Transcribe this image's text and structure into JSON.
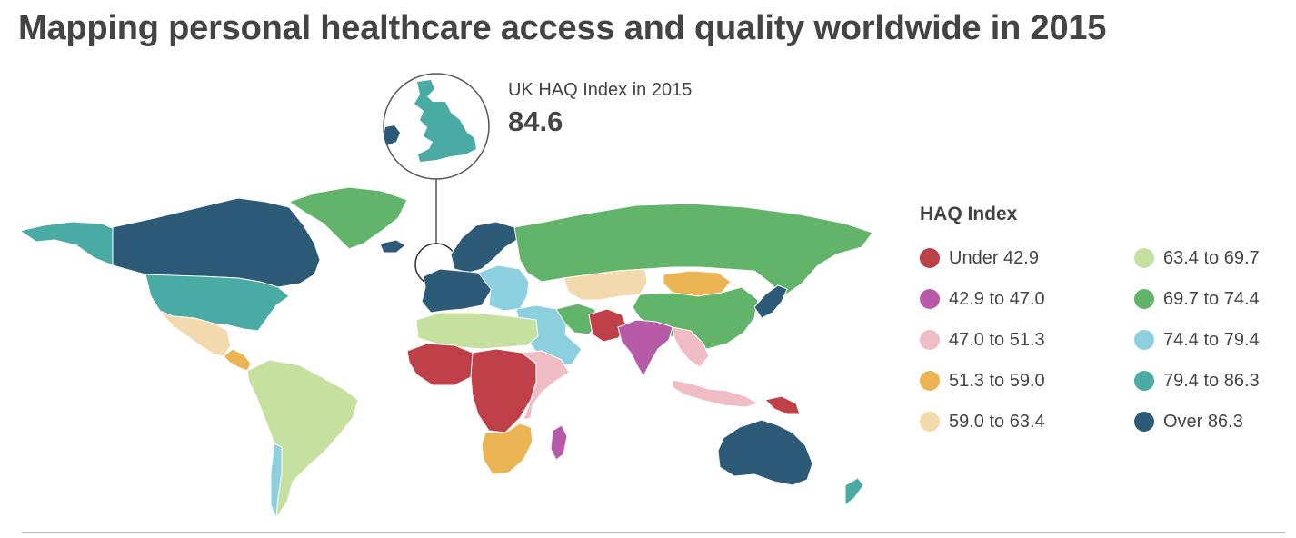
{
  "title": "Mapping personal healthcare access and quality worldwide in 2015",
  "callout": {
    "region": "UK",
    "label": "UK HAQ Index in 2015",
    "value": "84.6",
    "region_color": "#4aaba5"
  },
  "legend": {
    "title": "HAQ Index",
    "items": [
      {
        "label": "Under 42.9",
        "color": "#c0404a"
      },
      {
        "label": "42.9 to 47.0",
        "color": "#b75ba8"
      },
      {
        "label": "47.0 to 51.3",
        "color": "#f0bcc6"
      },
      {
        "label": "51.3 to 59.0",
        "color": "#ebb455"
      },
      {
        "label": "59.0 to 63.4",
        "color": "#f3d9ae"
      },
      {
        "label": "63.4 to 69.7",
        "color": "#c6e0a0"
      },
      {
        "label": "69.7 to 74.4",
        "color": "#62b46b"
      },
      {
        "label": "74.4 to 79.4",
        "color": "#8ccfdf"
      },
      {
        "label": "79.4 to 86.3",
        "color": "#4aaba5"
      },
      {
        "label": "Over 86.3",
        "color": "#2d5a77"
      }
    ]
  },
  "map": {
    "projection": "world choropleth",
    "regions": [
      {
        "name": "Alaska",
        "color": "#4aaba5"
      },
      {
        "name": "Canada",
        "color": "#2d5a77"
      },
      {
        "name": "USA",
        "color": "#4aaba5"
      },
      {
        "name": "Greenland",
        "color": "#62b46b"
      },
      {
        "name": "Mexico",
        "color": "#f3d9ae"
      },
      {
        "name": "Central America",
        "color": "#ebb455"
      },
      {
        "name": "South America",
        "color": "#c6e0a0"
      },
      {
        "name": "Chile",
        "color": "#8ccfdf"
      },
      {
        "name": "Iceland",
        "color": "#2d5a77"
      },
      {
        "name": "Scandinavia",
        "color": "#2d5a77"
      },
      {
        "name": "Western Europe",
        "color": "#2d5a77"
      },
      {
        "name": "Eastern Europe",
        "color": "#8ccfdf"
      },
      {
        "name": "Russia",
        "color": "#62b46b"
      },
      {
        "name": "Kazakhstan",
        "color": "#f3d9ae"
      },
      {
        "name": "Mongolia",
        "color": "#ebb455"
      },
      {
        "name": "China",
        "color": "#62b46b"
      },
      {
        "name": "Korea and Japan",
        "color": "#2d5a77"
      },
      {
        "name": "Middle East",
        "color": "#8ccfdf"
      },
      {
        "name": "Iran",
        "color": "#62b46b"
      },
      {
        "name": "Afghanistan and Pakistan",
        "color": "#c0404a"
      },
      {
        "name": "India",
        "color": "#b75ba8"
      },
      {
        "name": "Southeast Asia",
        "color": "#f0bcc6"
      },
      {
        "name": "Indonesia",
        "color": "#f0bcc6"
      },
      {
        "name": "Papua New Guinea",
        "color": "#c0404a"
      },
      {
        "name": "Australia",
        "color": "#2d5a77"
      },
      {
        "name": "New Zealand",
        "color": "#4aaba5"
      },
      {
        "name": "North Africa",
        "color": "#c6e0a0"
      },
      {
        "name": "West Africa",
        "color": "#c0404a"
      },
      {
        "name": "Central Africa",
        "color": "#c0404a"
      },
      {
        "name": "East Africa",
        "color": "#f0bcc6"
      },
      {
        "name": "Southern Africa",
        "color": "#ebb455"
      },
      {
        "name": "Madagascar",
        "color": "#b75ba8"
      }
    ]
  }
}
